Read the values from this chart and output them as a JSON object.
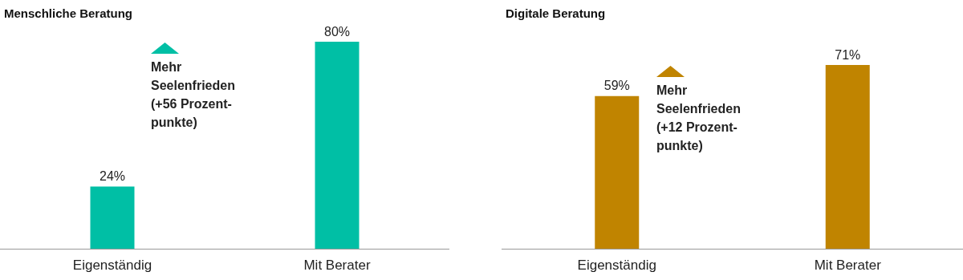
{
  "chart_data": [
    {
      "type": "bar",
      "title": "Menschliche Beratung",
      "categories": [
        "Eigenständig",
        "Mit Berater"
      ],
      "values": [
        24,
        80
      ],
      "value_labels": [
        "24%",
        "80%"
      ],
      "color": "#00bfa5",
      "annotations": [
        "Mehr\nSeelenfrieden\n(+56 Prozent-\npunkte)"
      ]
    },
    {
      "type": "bar",
      "title": "Digitale Beratung",
      "categories": [
        "Eigenständig",
        "Mit Berater"
      ],
      "values": [
        59,
        71
      ],
      "value_labels": [
        "59%",
        "71%"
      ],
      "color": "#c08400",
      "annotations": [
        "Mehr\nSeelenfrieden\n(+12 Prozent-\npunkte)"
      ]
    }
  ]
}
